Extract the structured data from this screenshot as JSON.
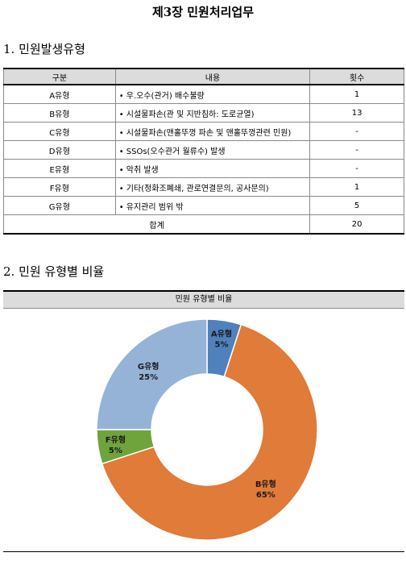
{
  "title": "제3장 민원처리업무",
  "section1": {
    "heading": "1. 민원발생유형"
  },
  "table": {
    "headers": [
      "구분",
      "내용",
      "횟수"
    ],
    "rows": [
      {
        "type": "A유형",
        "content": "우.오수(관거) 배수불량",
        "count": "1"
      },
      {
        "type": "B유형",
        "content": "시설물파손(관 및 지반침하: 도로균열)",
        "count": "13"
      },
      {
        "type": "C유형",
        "content": "시설물파손(맨홀뚜껑 파손 및 맨홀뚜껑관련 민원)",
        "count": "-"
      },
      {
        "type": "D유형",
        "content": "SSOs(오수관거 월류수) 발생",
        "count": "-"
      },
      {
        "type": "E유형",
        "content": "악취 발생",
        "count": "-"
      },
      {
        "type": "F유형",
        "content": "기타(정화조폐쇄, 관로연결문의, 공사문의)",
        "count": "1"
      },
      {
        "type": "G유형",
        "content": "유지관리 범위 밖",
        "count": "5"
      }
    ],
    "total_label": "합계",
    "total_value": "20"
  },
  "section2": {
    "heading": "2. 민원 유형별 비율"
  },
  "chart_data": {
    "type": "pie",
    "title": "민원 유형별 비율",
    "slices": [
      {
        "label": "A유형",
        "value": 5,
        "pct_label": "5%",
        "color": "#4f81bd"
      },
      {
        "label": "B유형",
        "value": 65,
        "pct_label": "65%",
        "color": "#e07b39"
      },
      {
        "label": "F유형",
        "value": 5,
        "pct_label": "5%",
        "color": "#6fa33c"
      },
      {
        "label": "G유형",
        "value": 25,
        "pct_label": "25%",
        "color": "#95b3d7"
      }
    ]
  }
}
